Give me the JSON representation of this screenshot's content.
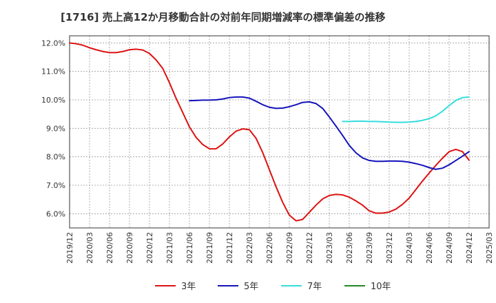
{
  "chart_data": {
    "type": "line",
    "title": "[1716]  売上高12か月移動合計の対前年同期増減率の標準偏差の推移",
    "x_ticks": [
      "2019/12",
      "2020/03",
      "2020/06",
      "2020/09",
      "2020/12",
      "2021/03",
      "2021/06",
      "2021/09",
      "2021/12",
      "2022/03",
      "2022/06",
      "2022/09",
      "2022/12",
      "2023/03",
      "2023/06",
      "2023/09",
      "2023/12",
      "2024/03",
      "2024/06",
      "2024/09",
      "2024/12",
      "2025/03"
    ],
    "y_ticks": [
      "6.0%",
      "7.0%",
      "8.0%",
      "9.0%",
      "10.0%",
      "11.0%",
      "12.0%"
    ],
    "ylim": [
      5.5,
      12.25
    ],
    "xlim": [
      "2019/12",
      "2025/03"
    ],
    "grid": true,
    "legend_position": "bottom",
    "series": [
      {
        "name": "3年",
        "color": "#dd1111",
        "points": [
          [
            "2019/12",
            12.0
          ],
          [
            "2020/01",
            11.97
          ],
          [
            "2020/02",
            11.92
          ],
          [
            "2020/03",
            11.83
          ],
          [
            "2020/04",
            11.76
          ],
          [
            "2020/05",
            11.7
          ],
          [
            "2020/06",
            11.66
          ],
          [
            "2020/07",
            11.66
          ],
          [
            "2020/08",
            11.7
          ],
          [
            "2020/09",
            11.76
          ],
          [
            "2020/10",
            11.78
          ],
          [
            "2020/11",
            11.75
          ],
          [
            "2020/12",
            11.63
          ],
          [
            "2021/01",
            11.4
          ],
          [
            "2021/02",
            11.1
          ],
          [
            "2021/03",
            10.6
          ],
          [
            "2021/04",
            10.05
          ],
          [
            "2021/05",
            9.55
          ],
          [
            "2021/06",
            9.05
          ],
          [
            "2021/07",
            8.68
          ],
          [
            "2021/08",
            8.43
          ],
          [
            "2021/09",
            8.28
          ],
          [
            "2021/10",
            8.28
          ],
          [
            "2021/11",
            8.45
          ],
          [
            "2021/12",
            8.7
          ],
          [
            "2022/01",
            8.9
          ],
          [
            "2022/02",
            8.98
          ],
          [
            "2022/03",
            8.95
          ],
          [
            "2022/04",
            8.65
          ],
          [
            "2022/05",
            8.15
          ],
          [
            "2022/06",
            7.55
          ],
          [
            "2022/07",
            6.95
          ],
          [
            "2022/08",
            6.4
          ],
          [
            "2022/09",
            5.95
          ],
          [
            "2022/10",
            5.75
          ],
          [
            "2022/11",
            5.8
          ],
          [
            "2022/12",
            6.05
          ],
          [
            "2023/01",
            6.3
          ],
          [
            "2023/02",
            6.52
          ],
          [
            "2023/03",
            6.64
          ],
          [
            "2023/04",
            6.68
          ],
          [
            "2023/05",
            6.66
          ],
          [
            "2023/06",
            6.58
          ],
          [
            "2023/07",
            6.45
          ],
          [
            "2023/08",
            6.3
          ],
          [
            "2023/09",
            6.1
          ],
          [
            "2023/10",
            6.02
          ],
          [
            "2023/11",
            6.02
          ],
          [
            "2023/12",
            6.06
          ],
          [
            "2024/01",
            6.16
          ],
          [
            "2024/02",
            6.33
          ],
          [
            "2024/03",
            6.55
          ],
          [
            "2024/04",
            6.85
          ],
          [
            "2024/05",
            7.15
          ],
          [
            "2024/06",
            7.43
          ],
          [
            "2024/07",
            7.7
          ],
          [
            "2024/08",
            7.95
          ],
          [
            "2024/09",
            8.18
          ],
          [
            "2024/10",
            8.26
          ],
          [
            "2024/11",
            8.18
          ],
          [
            "2024/12",
            7.88
          ]
        ]
      },
      {
        "name": "5年",
        "color": "#1111bb",
        "points": [
          [
            "2021/06",
            9.97
          ],
          [
            "2021/07",
            9.98
          ],
          [
            "2021/08",
            9.99
          ],
          [
            "2021/09",
            9.99
          ],
          [
            "2021/10",
            10.0
          ],
          [
            "2021/11",
            10.03
          ],
          [
            "2021/12",
            10.08
          ],
          [
            "2022/01",
            10.1
          ],
          [
            "2022/02",
            10.1
          ],
          [
            "2022/03",
            10.06
          ],
          [
            "2022/04",
            9.95
          ],
          [
            "2022/05",
            9.83
          ],
          [
            "2022/06",
            9.74
          ],
          [
            "2022/07",
            9.7
          ],
          [
            "2022/08",
            9.71
          ],
          [
            "2022/09",
            9.76
          ],
          [
            "2022/10",
            9.83
          ],
          [
            "2022/11",
            9.91
          ],
          [
            "2022/12",
            9.93
          ],
          [
            "2023/01",
            9.87
          ],
          [
            "2023/02",
            9.7
          ],
          [
            "2023/03",
            9.4
          ],
          [
            "2023/04",
            9.08
          ],
          [
            "2023/05",
            8.75
          ],
          [
            "2023/06",
            8.4
          ],
          [
            "2023/07",
            8.14
          ],
          [
            "2023/08",
            7.96
          ],
          [
            "2023/09",
            7.87
          ],
          [
            "2023/10",
            7.84
          ],
          [
            "2023/11",
            7.84
          ],
          [
            "2023/12",
            7.85
          ],
          [
            "2024/01",
            7.85
          ],
          [
            "2024/02",
            7.84
          ],
          [
            "2024/03",
            7.81
          ],
          [
            "2024/04",
            7.76
          ],
          [
            "2024/05",
            7.7
          ],
          [
            "2024/06",
            7.62
          ],
          [
            "2024/07",
            7.56
          ],
          [
            "2024/08",
            7.6
          ],
          [
            "2024/09",
            7.72
          ],
          [
            "2024/10",
            7.87
          ],
          [
            "2024/11",
            8.02
          ],
          [
            "2024/12",
            8.18
          ]
        ]
      },
      {
        "name": "7年",
        "color": "#33dddd",
        "points": [
          [
            "2023/05",
            9.24
          ],
          [
            "2023/06",
            9.24
          ],
          [
            "2023/07",
            9.25
          ],
          [
            "2023/08",
            9.25
          ],
          [
            "2023/09",
            9.24
          ],
          [
            "2023/10",
            9.24
          ],
          [
            "2023/11",
            9.23
          ],
          [
            "2023/12",
            9.22
          ],
          [
            "2024/01",
            9.21
          ],
          [
            "2024/02",
            9.21
          ],
          [
            "2024/03",
            9.22
          ],
          [
            "2024/04",
            9.24
          ],
          [
            "2024/05",
            9.28
          ],
          [
            "2024/06",
            9.34
          ],
          [
            "2024/07",
            9.44
          ],
          [
            "2024/08",
            9.6
          ],
          [
            "2024/09",
            9.8
          ],
          [
            "2024/10",
            9.98
          ],
          [
            "2024/11",
            10.08
          ],
          [
            "2024/12",
            10.1
          ]
        ]
      },
      {
        "name": "10年",
        "color": "#228822",
        "points": []
      }
    ]
  }
}
